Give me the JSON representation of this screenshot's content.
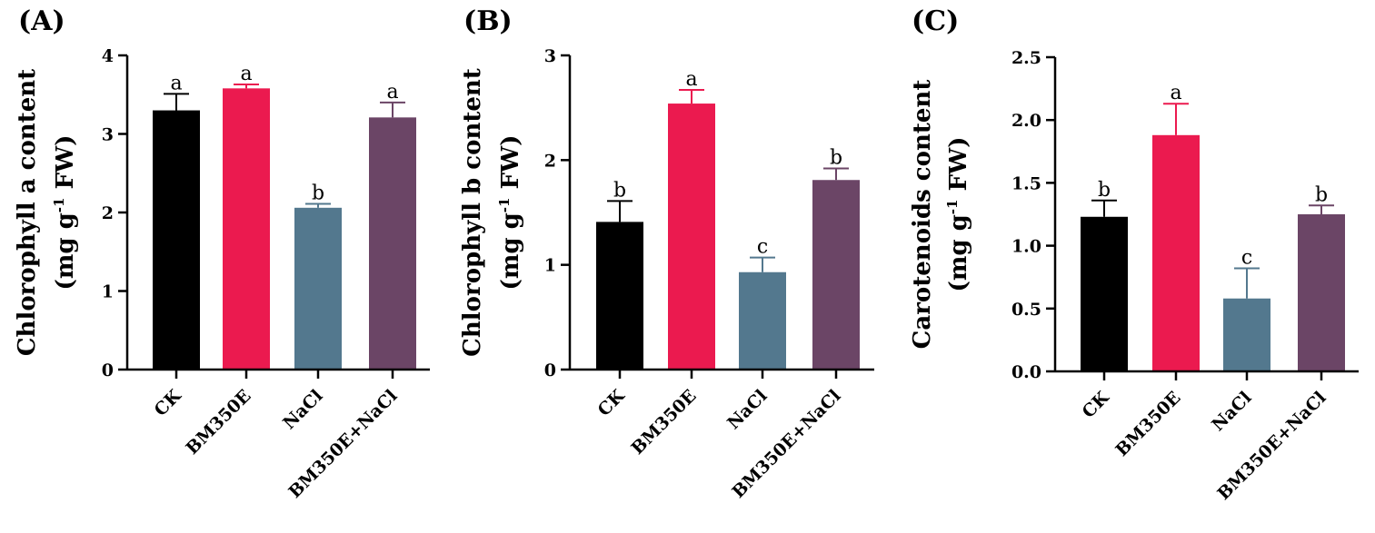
{
  "chart_data": [
    {
      "type": "bar",
      "panel": "(A)",
      "ylabel_line1": "Chlorophyll a content",
      "ylabel_line2": {
        "pre": "(mg g",
        "sup": "-1",
        "post": " FW)"
      },
      "categories": [
        "CK",
        "BM350E",
        "NaCl",
        "BM350E+NaCl"
      ],
      "values": [
        3.3,
        3.58,
        2.06,
        3.21
      ],
      "errors": [
        0.21,
        0.05,
        0.05,
        0.19
      ],
      "letters": [
        "a",
        "a",
        "b",
        "a"
      ],
      "ylim": [
        0,
        4
      ],
      "ticks": [
        0,
        1,
        2,
        3,
        4
      ],
      "tick_labels": [
        "0",
        "1",
        "2",
        "3",
        "4"
      ]
    },
    {
      "type": "bar",
      "panel": "(B)",
      "ylabel_line1": "Chlorophyll b content",
      "ylabel_line2": {
        "pre": "(mg g",
        "sup": "-1",
        "post": " FW)"
      },
      "categories": [
        "CK",
        "BM350E",
        "NaCl",
        "BM350E+NaCl"
      ],
      "values": [
        1.41,
        2.54,
        0.93,
        1.81
      ],
      "errors": [
        0.2,
        0.13,
        0.14,
        0.11
      ],
      "letters": [
        "b",
        "a",
        "c",
        "b"
      ],
      "ylim": [
        0,
        3
      ],
      "ticks": [
        0,
        1,
        2,
        3
      ],
      "tick_labels": [
        "0",
        "1",
        "2",
        "3"
      ]
    },
    {
      "type": "bar",
      "panel": "(C)",
      "ylabel_line1": "Carotenoids content",
      "ylabel_line2": {
        "pre": "(mg g",
        "sup": "-1",
        "post": " FW)"
      },
      "categories": [
        "CK",
        "BM350E",
        "NaCl",
        "BM350E+NaCl"
      ],
      "values": [
        1.23,
        1.88,
        0.58,
        1.25
      ],
      "errors": [
        0.13,
        0.25,
        0.24,
        0.07
      ],
      "letters": [
        "b",
        "a",
        "c",
        "b"
      ],
      "ylim": [
        0,
        2.5
      ],
      "ticks": [
        0,
        0.5,
        1.0,
        1.5,
        2.0,
        2.5
      ],
      "tick_labels": [
        "0.0",
        "0.5",
        "1.0",
        "1.5",
        "2.0",
        "2.5"
      ]
    }
  ],
  "colors": [
    "#000000",
    "#eb1a4f",
    "#53788e",
    "#6b4566"
  ]
}
